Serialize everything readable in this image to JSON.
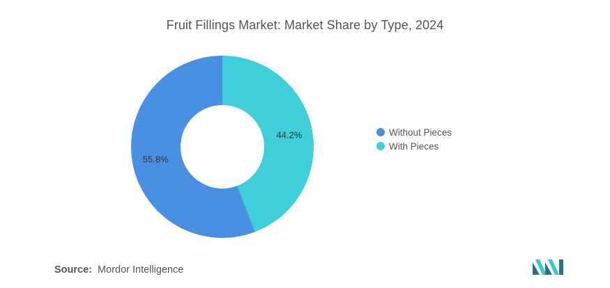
{
  "chart_data": {
    "type": "pie",
    "title": "Fruit Fillings Market: Market Share by Type, 2024",
    "categories": [
      "Without Pieces",
      "With Pieces"
    ],
    "values": [
      55.8,
      44.2
    ],
    "data_labels": [
      "55.8%",
      "44.2%"
    ],
    "colors": [
      "#4a90e2",
      "#3ecfdb"
    ],
    "donut": true,
    "legend_position": "right"
  },
  "source": {
    "label": "Source:",
    "text": "Mordor Intelligence"
  }
}
